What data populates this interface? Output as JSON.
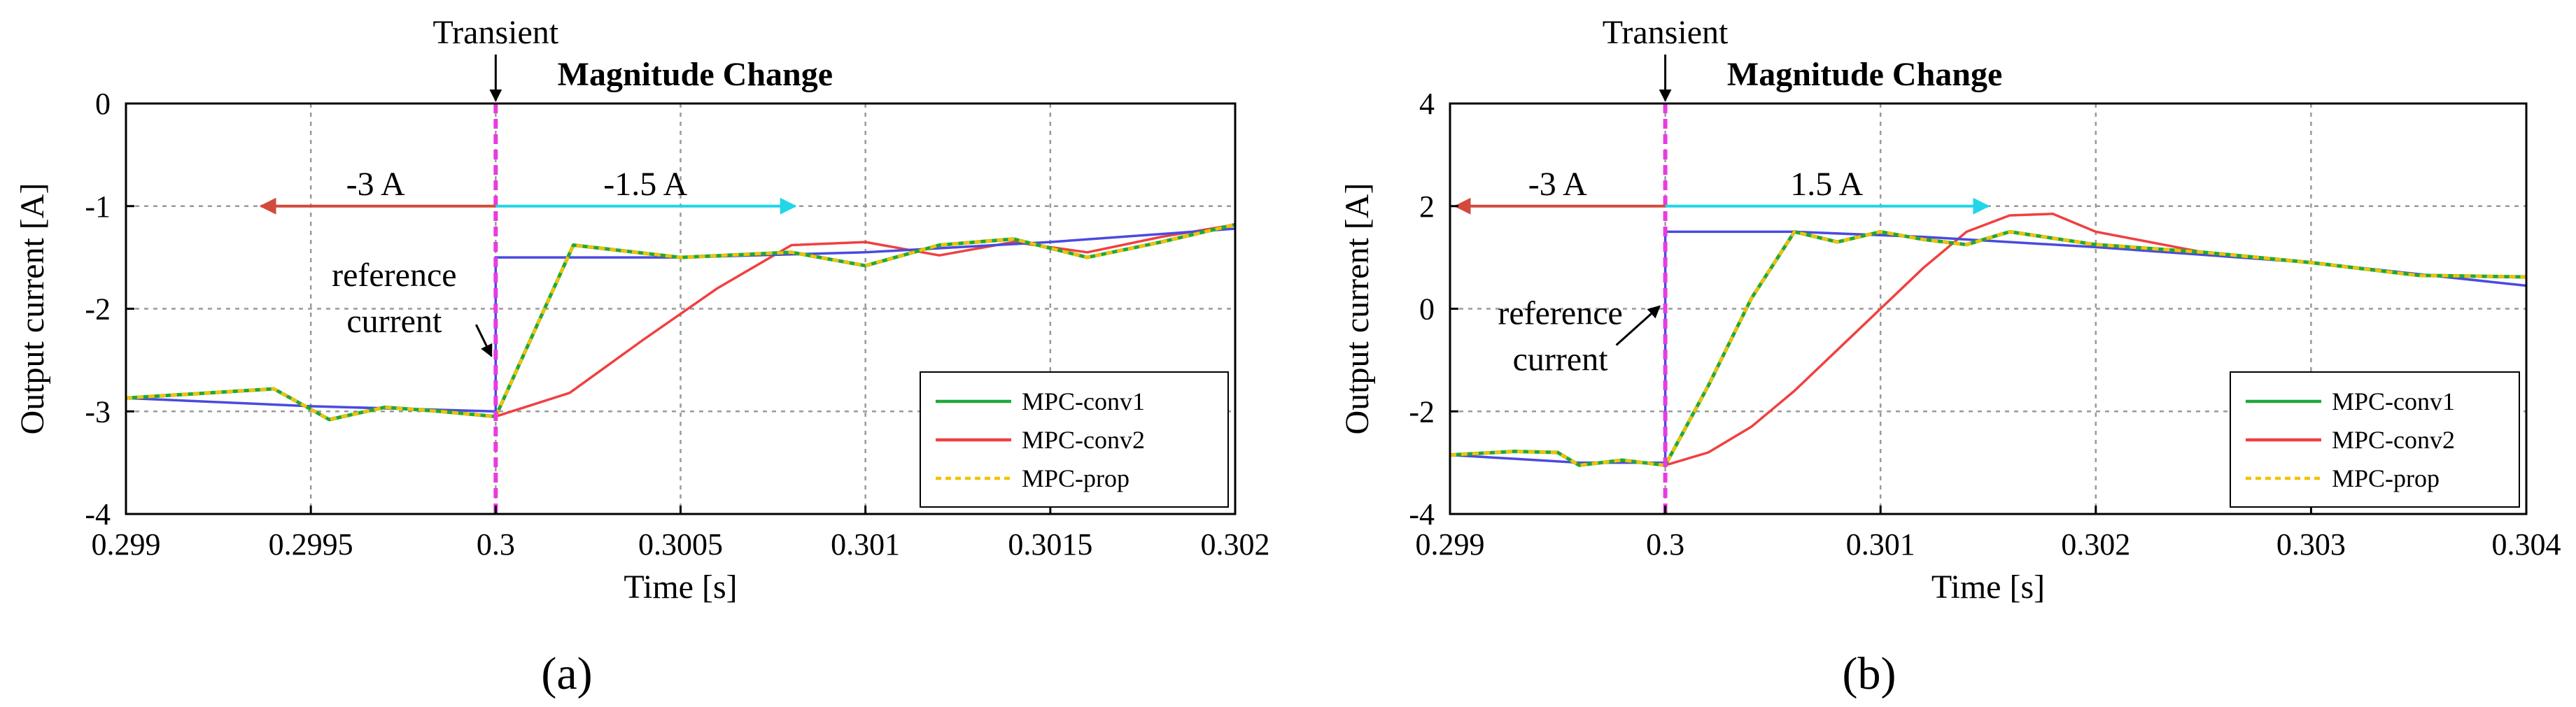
{
  "colors": {
    "reference": "#4a4ae0",
    "MPC-conv1": "#1fa83a",
    "MPC-conv2": "#f04040",
    "MPC-prop": "#f2c200",
    "transient_line": "#e83be0",
    "before_arrow": "#d24a3c",
    "after_arrow": "#22d6e8",
    "grid": "#9a9a9a"
  },
  "chart_data": [
    {
      "type": "line",
      "panel": "(a)",
      "title": "Magnitude Change",
      "transient_label": "Transient",
      "xlabel": "Time [s]",
      "ylabel": "Output current [A]",
      "xlim": [
        0.299,
        0.302
      ],
      "ylim": [
        -4,
        0
      ],
      "xticks": [
        0.299,
        0.2995,
        0.3,
        0.3005,
        0.301,
        0.3015,
        0.302
      ],
      "xtick_labels": [
        "0.299",
        "0.2995",
        "0.3",
        "0.3005",
        "0.301",
        "0.3015",
        "0.302"
      ],
      "yticks": [
        -4,
        -3,
        -2,
        -1,
        0
      ],
      "ytick_labels": [
        "-4",
        "-3",
        "-2",
        "-1",
        "0"
      ],
      "grid": true,
      "legend_position": "bottom-right",
      "transient_x": 0.3,
      "annotations": {
        "before_label": "-3 A",
        "after_label": "-1.5 A",
        "arrow_y": -1.0,
        "before_arrow_x": [
          0.3,
          0.29935
        ],
        "after_arrow_x": [
          0.3,
          0.30081
        ],
        "reference_line1": "reference",
        "reference_line2": "current"
      },
      "reference_current": {
        "x": [
          0.299,
          0.2995,
          0.3,
          0.3,
          0.3005,
          0.301,
          0.3015,
          0.302
        ],
        "y": [
          -2.87,
          -2.95,
          -3.0,
          -1.5,
          -1.5,
          -1.45,
          -1.35,
          -1.22
        ]
      },
      "series": [
        {
          "name": "MPC-conv1",
          "x": [
            0.299,
            0.2994,
            0.29955,
            0.2997,
            0.29985,
            0.3,
            0.30021,
            0.3005,
            0.3008,
            0.301,
            0.3012,
            0.3014,
            0.3016,
            0.3018,
            0.302
          ],
          "y": [
            -2.87,
            -2.78,
            -3.08,
            -2.96,
            -3.0,
            -3.05,
            -1.38,
            -1.5,
            -1.45,
            -1.58,
            -1.38,
            -1.32,
            -1.5,
            -1.35,
            -1.18
          ]
        },
        {
          "name": "MPC-conv2",
          "x": [
            0.299,
            0.2994,
            0.29955,
            0.2997,
            0.29985,
            0.3,
            0.3002,
            0.3004,
            0.3006,
            0.3008,
            0.301,
            0.3012,
            0.3014,
            0.3016,
            0.3018,
            0.302
          ],
          "y": [
            -2.87,
            -2.78,
            -3.08,
            -2.96,
            -3.0,
            -3.05,
            -2.82,
            -2.3,
            -1.8,
            -1.38,
            -1.35,
            -1.48,
            -1.35,
            -1.45,
            -1.3,
            -1.18
          ]
        },
        {
          "name": "MPC-prop",
          "x": [
            0.299,
            0.2994,
            0.29955,
            0.2997,
            0.29985,
            0.3,
            0.30021,
            0.3005,
            0.3008,
            0.301,
            0.3012,
            0.3014,
            0.3016,
            0.3018,
            0.302
          ],
          "y": [
            -2.87,
            -2.78,
            -3.08,
            -2.96,
            -3.0,
            -3.05,
            -1.38,
            -1.5,
            -1.45,
            -1.58,
            -1.38,
            -1.32,
            -1.5,
            -1.35,
            -1.18
          ]
        }
      ],
      "caption": "(a)"
    },
    {
      "type": "line",
      "panel": "(b)",
      "title": "Magnitude Change",
      "transient_label": "Transient",
      "xlabel": "Time [s]",
      "ylabel": "Output current [A]",
      "xlim": [
        0.299,
        0.304
      ],
      "ylim": [
        -4,
        4
      ],
      "xticks": [
        0.299,
        0.3,
        0.301,
        0.302,
        0.303,
        0.304
      ],
      "xtick_labels": [
        "0.299",
        "0.3",
        "0.301",
        "0.302",
        "0.303",
        "0.304"
      ],
      "yticks": [
        -4,
        -2,
        0,
        2,
        4
      ],
      "ytick_labels": [
        "-4",
        "-2",
        "0",
        "2",
        "4"
      ],
      "grid": true,
      "legend_position": "bottom-right",
      "transient_x": 0.3,
      "annotations": {
        "before_label": "-3 A",
        "after_label": "1.5 A",
        "arrow_y": 2.0,
        "before_arrow_x": [
          0.3,
          0.299
        ],
        "after_arrow_x": [
          0.3,
          0.3015
        ],
        "reference_line1": "reference",
        "reference_line2": "current"
      },
      "reference_current": {
        "x": [
          0.299,
          0.2996,
          0.3,
          0.3,
          0.3006,
          0.3012,
          0.302,
          0.303,
          0.304
        ],
        "y": [
          -2.85,
          -3.0,
          -3.0,
          1.5,
          1.5,
          1.4,
          1.2,
          0.9,
          0.45
        ]
      },
      "series": [
        {
          "name": "MPC-conv1",
          "x": [
            0.299,
            0.2993,
            0.2995,
            0.2996,
            0.2998,
            0.3,
            0.3002,
            0.3004,
            0.3006,
            0.3008,
            0.301,
            0.3012,
            0.3014,
            0.3016,
            0.302,
            0.3025,
            0.303,
            0.3035,
            0.304
          ],
          "y": [
            -2.85,
            -2.78,
            -2.8,
            -3.05,
            -2.95,
            -3.05,
            -1.5,
            0.2,
            1.5,
            1.3,
            1.5,
            1.35,
            1.25,
            1.5,
            1.25,
            1.1,
            0.9,
            0.65,
            0.62
          ]
        },
        {
          "name": "MPC-conv2",
          "x": [
            0.299,
            0.2993,
            0.2995,
            0.2996,
            0.2998,
            0.3,
            0.3002,
            0.3004,
            0.3006,
            0.3008,
            0.301,
            0.3012,
            0.3014,
            0.3016,
            0.3018,
            0.302,
            0.3025,
            0.303,
            0.3035,
            0.304
          ],
          "y": [
            -2.85,
            -2.78,
            -2.8,
            -3.05,
            -2.95,
            -3.05,
            -2.8,
            -2.3,
            -1.6,
            -0.8,
            0.0,
            0.8,
            1.5,
            1.82,
            1.85,
            1.5,
            1.1,
            0.9,
            0.65,
            0.62
          ]
        },
        {
          "name": "MPC-prop",
          "x": [
            0.299,
            0.2993,
            0.2995,
            0.2996,
            0.2998,
            0.3,
            0.3002,
            0.3004,
            0.3006,
            0.3008,
            0.301,
            0.3012,
            0.3014,
            0.3016,
            0.302,
            0.3025,
            0.303,
            0.3035,
            0.304
          ],
          "y": [
            -2.85,
            -2.78,
            -2.8,
            -3.05,
            -2.95,
            -3.05,
            -1.5,
            0.2,
            1.5,
            1.3,
            1.5,
            1.35,
            1.25,
            1.5,
            1.25,
            1.1,
            0.9,
            0.65,
            0.62
          ]
        }
      ],
      "caption": "(b)"
    }
  ]
}
